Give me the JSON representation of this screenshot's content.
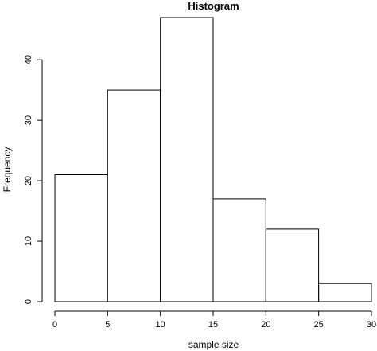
{
  "chart_data": {
    "type": "bar",
    "title": "Histogram",
    "xlabel": "sample size",
    "ylabel": "Frequency",
    "bins": [
      {
        "start": 0,
        "end": 5,
        "count": 21
      },
      {
        "start": 5,
        "end": 10,
        "count": 35
      },
      {
        "start": 10,
        "end": 15,
        "count": 47
      },
      {
        "start": 15,
        "end": 20,
        "count": 17
      },
      {
        "start": 20,
        "end": 25,
        "count": 12
      },
      {
        "start": 25,
        "end": 30,
        "count": 3
      }
    ],
    "xlim": [
      0,
      30
    ],
    "ylim": [
      0,
      47
    ],
    "xticks": [
      0,
      5,
      10,
      15,
      20,
      25,
      30
    ],
    "yticks": [
      0,
      10,
      20,
      30,
      40
    ],
    "grid": false,
    "colors": {
      "bar_fill": "#ffffff",
      "bar_stroke": "#000000"
    }
  }
}
